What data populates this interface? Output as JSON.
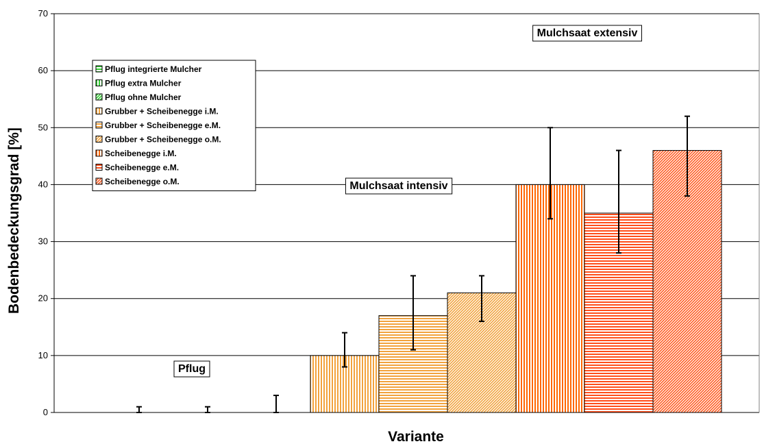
{
  "chart_data": {
    "type": "bar",
    "ylabel": "Bodenbedeckungsgrad [%]",
    "xlabel": "Variante",
    "ylim": [
      0,
      70
    ],
    "yticks": [
      0,
      10,
      20,
      30,
      40,
      50,
      60,
      70
    ],
    "grid": true,
    "legend_position": "top-left",
    "series": [
      {
        "name": "Pflug integrierte Mulcher",
        "value": 0,
        "err_low": 0,
        "err_high": 1,
        "color": "#33cc33",
        "pattern": "horizontal"
      },
      {
        "name": "Pflug extra Mulcher",
        "value": 0,
        "err_low": 0,
        "err_high": 1,
        "color": "#33cc33",
        "pattern": "vertical"
      },
      {
        "name": "Pflug ohne Mulcher",
        "value": 0,
        "err_low": 0,
        "err_high": 3,
        "color": "#33cc33",
        "pattern": "diagonal"
      },
      {
        "name": "Grubber + Scheibenegge i.M.",
        "value": 10,
        "err_low": 8,
        "err_high": 14,
        "color": "#f2a23c",
        "pattern": "vertical"
      },
      {
        "name": "Grubber + Scheibenegge e.M.",
        "value": 17,
        "err_low": 11,
        "err_high": 24,
        "color": "#f2a23c",
        "pattern": "horizontal"
      },
      {
        "name": "Grubber + Scheibenegge o.M.",
        "value": 21,
        "err_low": 16,
        "err_high": 24,
        "color": "#f2a23c",
        "pattern": "diagonal"
      },
      {
        "name": "Scheibenegge i.M.",
        "value": 40,
        "err_low": 34,
        "err_high": 50,
        "color": "#ff6600",
        "pattern": "vertical"
      },
      {
        "name": "Scheibenegge e.M.",
        "value": 35,
        "err_low": 28,
        "err_high": 46,
        "color": "#ff4d1a",
        "pattern": "horizontal"
      },
      {
        "name": "Scheibenegge o.M.",
        "value": 46,
        "err_low": 38,
        "err_high": 52,
        "color": "#ff5a1f",
        "pattern": "diagonal"
      }
    ],
    "annotations": [
      {
        "text": "Pflug",
        "group": "Pflug"
      },
      {
        "text": "Mulchsaat intensiv",
        "group": "Mulchsaat intensiv"
      },
      {
        "text": "Mulchsaat extensiv",
        "group": "Mulchsaat extensiv"
      }
    ]
  }
}
